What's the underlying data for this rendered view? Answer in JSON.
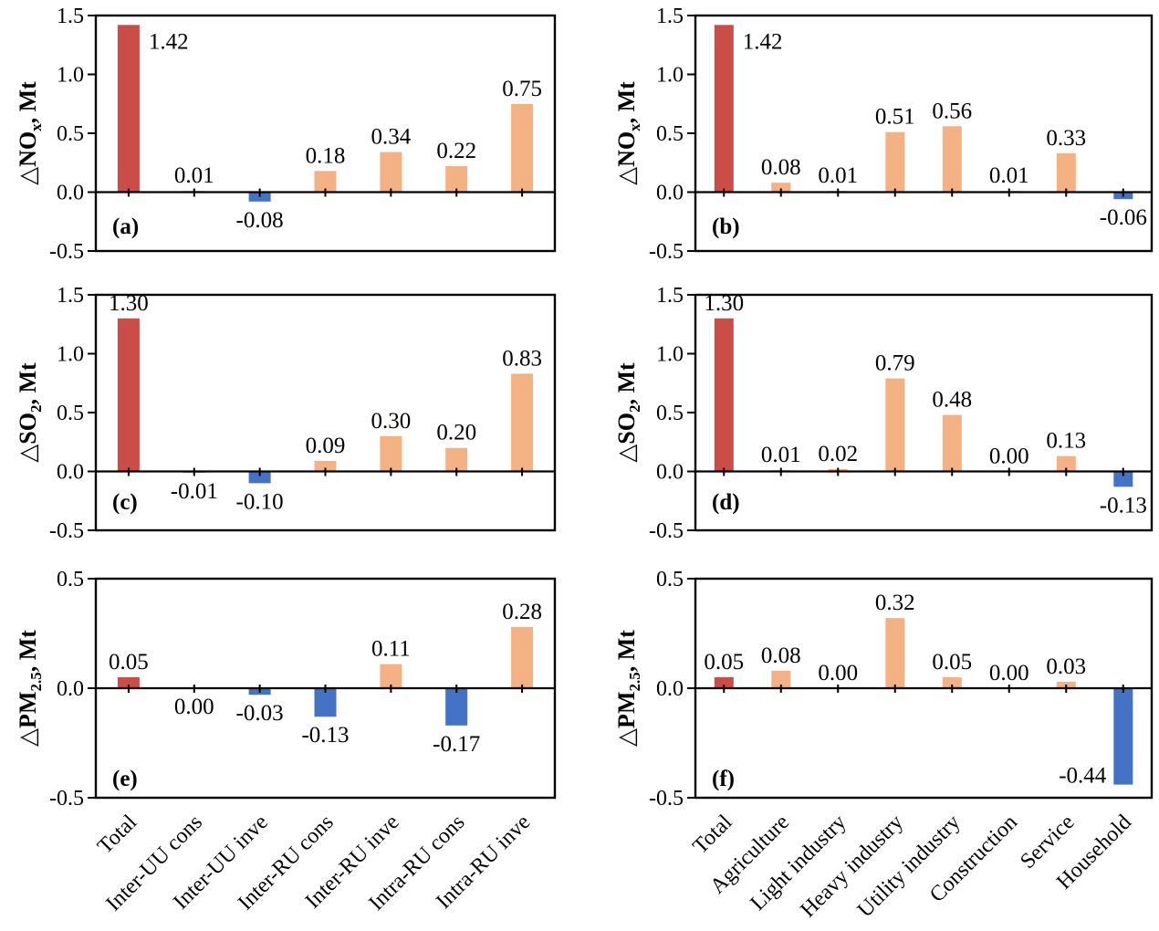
{
  "figure": {
    "background": "#ffffff",
    "colors": {
      "total_bar": "#CB4D48",
      "positive_bar": "#F4B183",
      "negative_bar": "#4472C4",
      "axis": "#000000",
      "text": "#000000"
    }
  },
  "chart_data": [
    {
      "type": "bar",
      "panel_label": "(a)",
      "column": "left",
      "ylabel": "△NOx, Mt",
      "ylabel_parts": {
        "pre": "△NO",
        "sub": "x",
        "post": ", Mt"
      },
      "ylim": [
        -0.5,
        1.5
      ],
      "ytick_labels": [
        "1.5",
        "1.0",
        "0.5",
        "0.0",
        "-0.5"
      ],
      "categories": [
        "Total",
        "Inter-UU cons",
        "Inter-UU inve",
        "Inter-RU cons",
        "Inter-RU inve",
        "Intra-RU cons",
        "Intra-RU inve"
      ],
      "values": [
        1.42,
        0.01,
        -0.08,
        0.18,
        0.34,
        0.22,
        0.75
      ],
      "value_labels": [
        "1.42",
        "0.01",
        "-0.08",
        "0.18",
        "0.34",
        "0.22",
        "0.75"
      ],
      "label_sides": [
        "right",
        "above",
        "below",
        "above",
        "above",
        "above",
        "above"
      ]
    },
    {
      "type": "bar",
      "panel_label": "(b)",
      "column": "right",
      "ylabel": "△NOx, Mt",
      "ylabel_parts": {
        "pre": "△NO",
        "sub": "x",
        "post": ", Mt"
      },
      "ylim": [
        -0.5,
        1.5
      ],
      "ytick_labels": [
        "1.5",
        "1.0",
        "0.5",
        "0.0",
        "-0.5"
      ],
      "categories": [
        "Total",
        "Agriculture",
        "Light industry",
        "Heavy industry",
        "Utility industry",
        "Construction",
        "Service",
        "Household"
      ],
      "values": [
        1.42,
        0.08,
        0.01,
        0.51,
        0.56,
        0.01,
        0.33,
        -0.06
      ],
      "value_labels": [
        "1.42",
        "0.08",
        "0.01",
        "0.51",
        "0.56",
        "0.01",
        "0.33",
        "-0.06"
      ],
      "label_sides": [
        "right",
        "above",
        "above",
        "above",
        "above",
        "above",
        "above",
        "below"
      ]
    },
    {
      "type": "bar",
      "panel_label": "(c)",
      "column": "left",
      "ylabel": "△SO2, Mt",
      "ylabel_parts": {
        "pre": "△SO",
        "sub": "2",
        "post": ", Mt"
      },
      "ylim": [
        -0.5,
        1.5
      ],
      "ytick_labels": [
        "1.5",
        "1.0",
        "0.5",
        "0.0",
        "-0.5"
      ],
      "categories": [
        "Total",
        "Inter-UU cons",
        "Inter-UU inve",
        "Inter-RU cons",
        "Inter-RU inve",
        "Intra-RU cons",
        "Intra-RU inve"
      ],
      "values": [
        1.3,
        -0.01,
        -0.1,
        0.09,
        0.3,
        0.2,
        0.83
      ],
      "value_labels": [
        "1.30",
        "-0.01",
        "-0.10",
        "0.09",
        "0.30",
        "0.20",
        "0.83"
      ],
      "label_sides": [
        "above",
        "below",
        "below",
        "above",
        "above",
        "above",
        "above"
      ]
    },
    {
      "type": "bar",
      "panel_label": "(d)",
      "column": "right",
      "ylabel": "△SO2, Mt",
      "ylabel_parts": {
        "pre": "△SO",
        "sub": "2",
        "post": ", Mt"
      },
      "ylim": [
        -0.5,
        1.5
      ],
      "ytick_labels": [
        "1.5",
        "1.0",
        "0.5",
        "0.0",
        "-0.5"
      ],
      "categories": [
        "Total",
        "Agriculture",
        "Light industry",
        "Heavy industry",
        "Utility industry",
        "Construction",
        "Service",
        "Household"
      ],
      "values": [
        1.3,
        0.01,
        0.02,
        0.79,
        0.48,
        0.0,
        0.13,
        -0.13
      ],
      "value_labels": [
        "1.30",
        "0.01",
        "0.02",
        "0.79",
        "0.48",
        "0.00",
        "0.13",
        "-0.13"
      ],
      "label_sides": [
        "above",
        "above",
        "above",
        "above",
        "above",
        "above",
        "above",
        "below"
      ]
    },
    {
      "type": "bar",
      "panel_label": "(e)",
      "column": "left",
      "ylabel": "△PM2.5, Mt",
      "ylabel_parts": {
        "pre": "△PM",
        "sub": "2.5",
        "post": ", Mt"
      },
      "ylim": [
        -0.5,
        0.5
      ],
      "ytick_labels": [
        "0.5",
        "0.0",
        "-0.5"
      ],
      "categories": [
        "Total",
        "Inter-UU cons",
        "Inter-UU inve",
        "Inter-RU cons",
        "Inter-RU inve",
        "Intra-RU cons",
        "Intra-RU inve"
      ],
      "values": [
        0.05,
        0.0,
        -0.03,
        -0.13,
        0.11,
        -0.17,
        0.28
      ],
      "value_labels": [
        "0.05",
        "0.00",
        "-0.03",
        "-0.13",
        "0.11",
        "-0.17",
        "0.28"
      ],
      "label_sides": [
        "above",
        "below",
        "below",
        "below",
        "above",
        "below",
        "above"
      ]
    },
    {
      "type": "bar",
      "panel_label": "(f)",
      "column": "right",
      "ylabel": "△PM2.5, Mt",
      "ylabel_parts": {
        "pre": "△PM",
        "sub": "2.5",
        "post": ", Mt"
      },
      "ylim": [
        -0.5,
        0.5
      ],
      "ytick_labels": [
        "0.5",
        "0.0",
        "-0.5"
      ],
      "categories": [
        "Total",
        "Agriculture",
        "Light industry",
        "Heavy industry",
        "Utility industry",
        "Construction",
        "Service",
        "Household"
      ],
      "values": [
        0.05,
        0.08,
        0.0,
        0.32,
        0.05,
        0.0,
        0.03,
        -0.44
      ],
      "value_labels": [
        "0.05",
        "0.08",
        "0.00",
        "0.32",
        "0.05",
        "0.00",
        "0.03",
        "-0.44"
      ],
      "label_sides": [
        "above",
        "above",
        "above",
        "above",
        "above",
        "above",
        "above",
        "left"
      ]
    }
  ]
}
